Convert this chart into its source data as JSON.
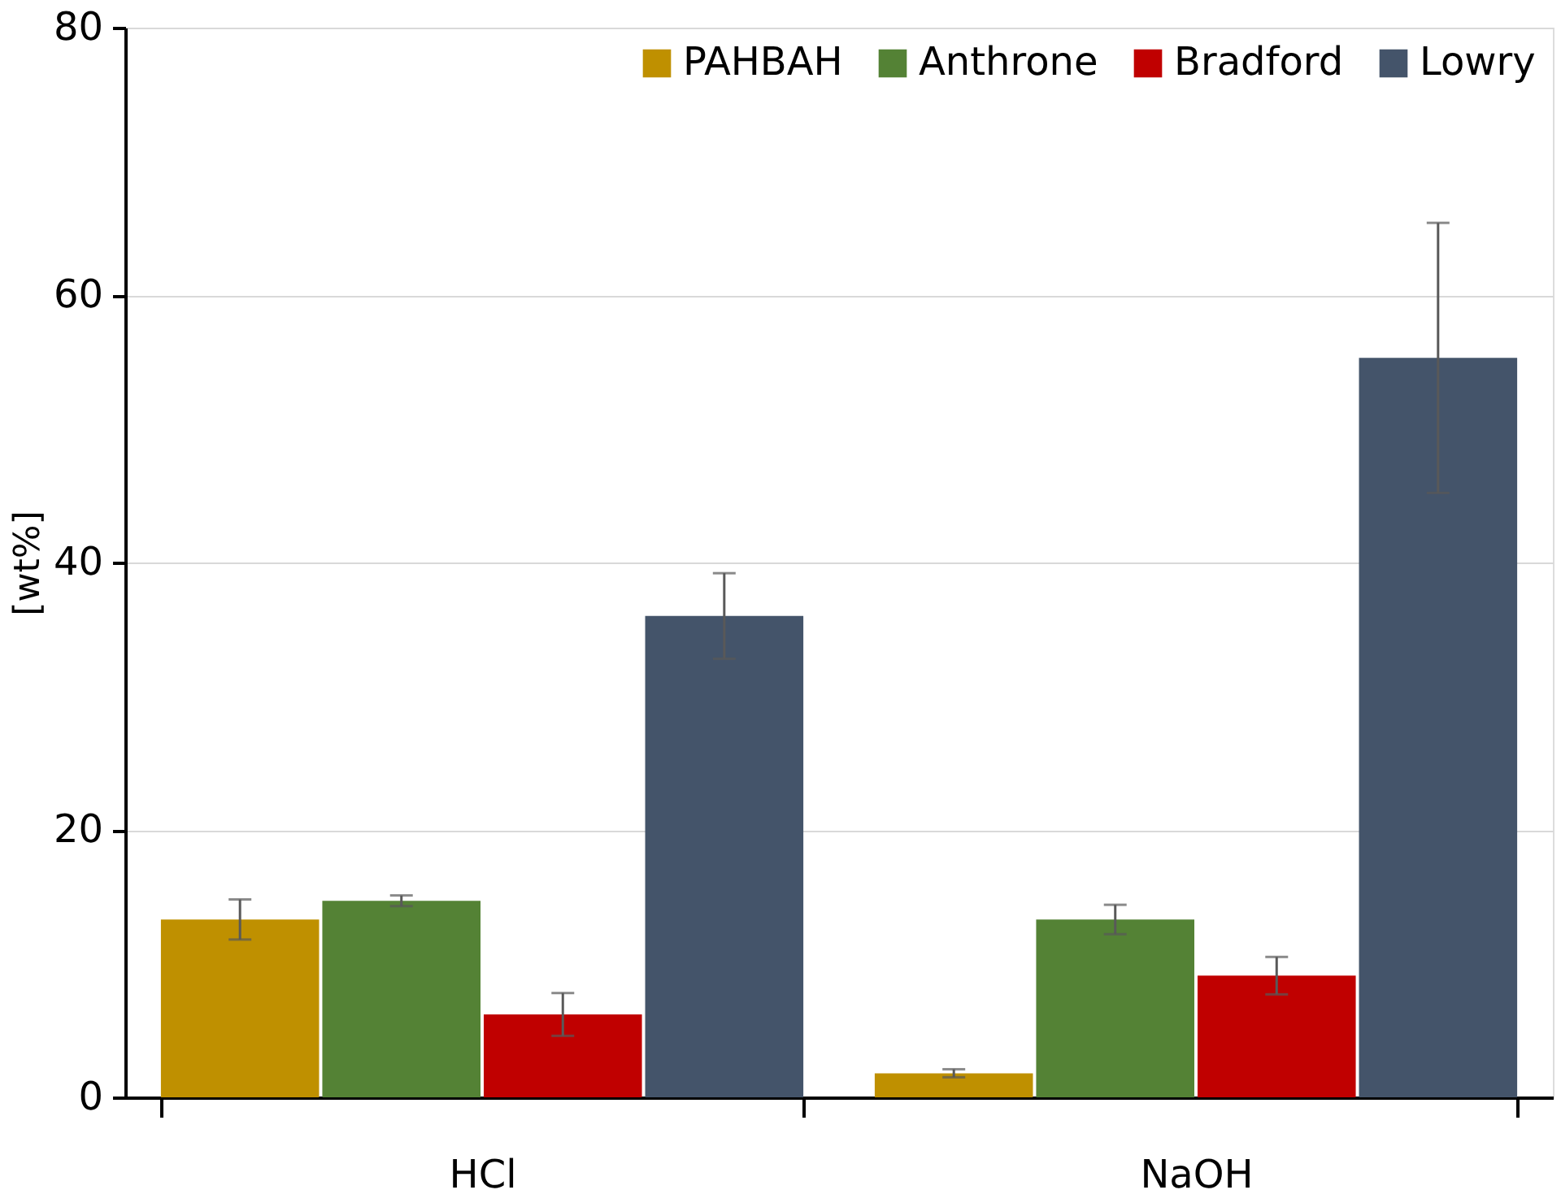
{
  "chart_data": {
    "type": "bar",
    "ylabel": "[wt%]",
    "categories": [
      "HCl",
      "NaOH"
    ],
    "series": [
      {
        "name": "PAHBAH",
        "color": "#bf9000",
        "values": [
          13.3,
          1.8
        ],
        "errors": [
          1.5,
          0.3
        ]
      },
      {
        "name": "Anthrone",
        "color": "#548235",
        "values": [
          14.7,
          13.3
        ],
        "errors": [
          0.4,
          1.1
        ]
      },
      {
        "name": "Bradford",
        "color": "#c00000",
        "values": [
          6.2,
          9.1
        ],
        "errors": [
          1.6,
          1.4
        ]
      },
      {
        "name": "Lowry",
        "color": "#44546a",
        "values": [
          36.0,
          55.3
        ],
        "errors": [
          3.2,
          10.1
        ]
      }
    ],
    "ylim": [
      0,
      80
    ],
    "yticks": [
      0,
      20,
      40,
      60,
      80
    ],
    "grid": "y",
    "legend": "top right"
  }
}
